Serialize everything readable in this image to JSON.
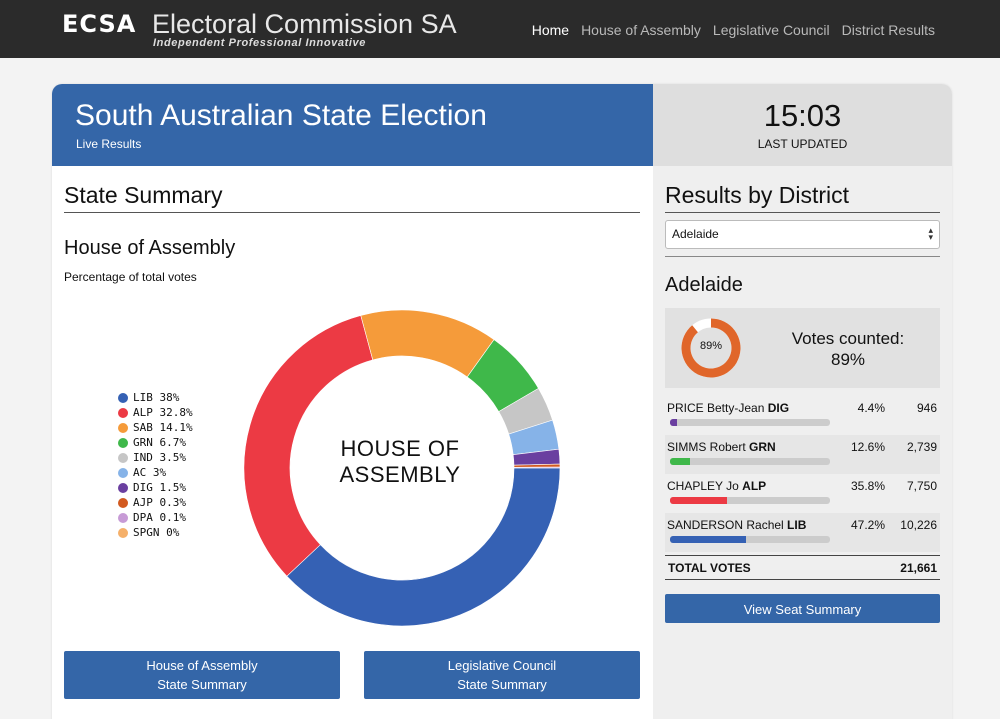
{
  "brand": {
    "abbr": "ECSA",
    "title": "Electoral Commission SA",
    "tagline": "Independent  Professional  Innovative"
  },
  "nav": [
    {
      "label": "Home",
      "active": true
    },
    {
      "label": "House of Assembly",
      "active": false
    },
    {
      "label": "Legislative Council",
      "active": false
    },
    {
      "label": "District Results",
      "active": false
    }
  ],
  "hero": {
    "title": "South Australian State Election",
    "subtitle": "Live Results"
  },
  "updated": {
    "time": "15:03",
    "label": "LAST UPDATED"
  },
  "summary": {
    "heading": "State Summary",
    "subheading": "House of Assembly",
    "caption": "Percentage of total votes",
    "center_label_line1": "HOUSE OF",
    "center_label_line2": "ASSEMBLY",
    "buttons": {
      "hoa_line1": "House of Assembly",
      "hoa_line2": "State Summary",
      "lc_line1": "Legislative Council",
      "lc_line2": "State Summary"
    }
  },
  "chart_data": {
    "type": "pie",
    "categories": [
      "LIB",
      "ALP",
      "SAB",
      "GRN",
      "IND",
      "AC",
      "DIG",
      "AJP",
      "DPA",
      "SPGN"
    ],
    "values": [
      38,
      32.8,
      14.1,
      6.7,
      3.5,
      3,
      1.5,
      0.3,
      0.1,
      0
    ],
    "legend_labels": [
      "LIB 38%",
      "ALP 32.8%",
      "SAB 14.1%",
      "GRN 6.7%",
      "IND 3.5%",
      "AC 3%",
      "DIG 1.5%",
      "AJP 0.3%",
      "DPA 0.1%",
      "SPGN 0%"
    ],
    "colors": [
      "#3561b4",
      "#ec3a44",
      "#f59b3a",
      "#3fb84a",
      "#c6c6c6",
      "#86b3e8",
      "#6a3fa0",
      "#d25a20",
      "#c79bd6",
      "#f5b06a"
    ],
    "legend_position": "left"
  },
  "district": {
    "heading": "Results by District",
    "selected": "Adelaide",
    "name": "Adelaide",
    "counted_label": "Votes counted:",
    "counted_pct": "89%",
    "counted_fraction": 0.89,
    "ring_color": "#e0662a",
    "candidates": [
      {
        "name": "PRICE Betty-Jean ",
        "party": "DIG",
        "pct": "4.4%",
        "votes": "946",
        "share": 0.044,
        "color": "#6a3fa0"
      },
      {
        "name": "SIMMS Robert ",
        "party": "GRN",
        "pct": "12.6%",
        "votes": "2,739",
        "share": 0.126,
        "color": "#3fb84a"
      },
      {
        "name": "CHAPLEY Jo ",
        "party": "ALP",
        "pct": "35.8%",
        "votes": "7,750",
        "share": 0.358,
        "color": "#ec3a44"
      },
      {
        "name": "SANDERSON Rachel ",
        "party": "LIB",
        "pct": "47.2%",
        "votes": "10,226",
        "share": 0.472,
        "color": "#3561b4"
      }
    ],
    "total_label": "TOTAL VOTES",
    "total_value": "21,661",
    "button_label": "View Seat Summary"
  }
}
